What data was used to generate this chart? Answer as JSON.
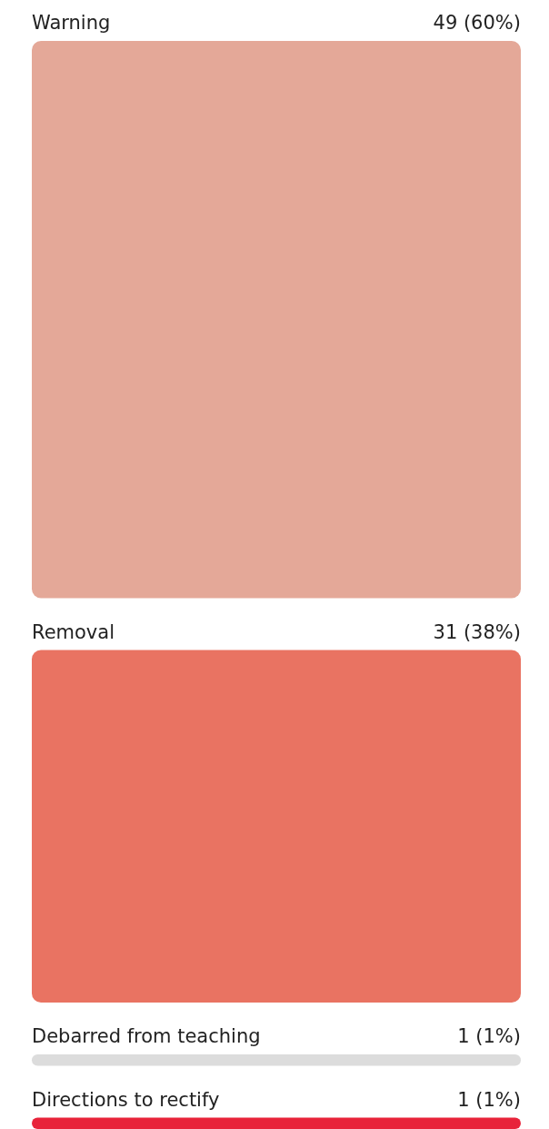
{
  "chart_data": {
    "type": "other",
    "categories": [
      "Warning",
      "Removal",
      "Debarred from teaching",
      "Directions to rectify"
    ],
    "values": [
      49,
      31,
      1,
      1
    ],
    "value_labels": [
      "49 (60%)",
      "31 (38%)",
      "1 (1%)",
      "1 (1%)"
    ],
    "colors": [
      "#e4a898",
      "#e97362",
      "#dcdcdc",
      "#e8233a"
    ]
  }
}
